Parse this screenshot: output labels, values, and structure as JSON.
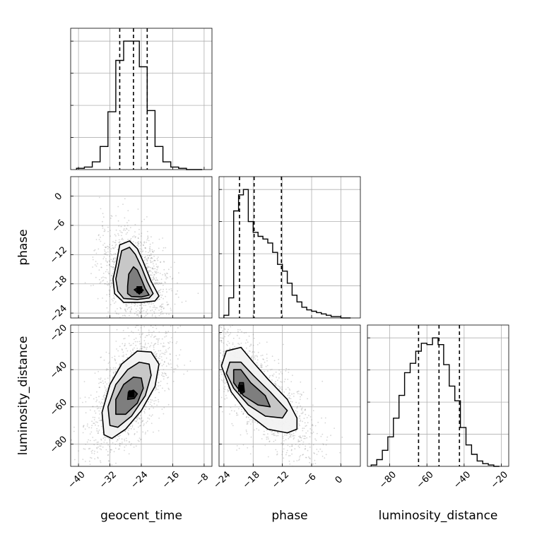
{
  "chart_data": {
    "type": "corner",
    "parameters": [
      "geocent_time",
      "phase",
      "luminosity_distance"
    ],
    "axes": {
      "geocent_time": {
        "lim": [
          -42,
          -6
        ],
        "ticks": [
          -40,
          -32,
          -24,
          -16,
          -8
        ]
      },
      "phase": {
        "lim": [
          -25,
          4
        ],
        "ticks": [
          -24,
          -18,
          -12,
          -6,
          0
        ]
      },
      "luminosity_distance": {
        "lim": [
          -92,
          -16
        ],
        "ticks": [
          -80,
          -60,
          -40,
          -20
        ]
      }
    },
    "diagonal": [
      {
        "parameter": "geocent_time",
        "quantiles": [
          -29.5,
          -26.0,
          -22.5
        ],
        "bin_edges": [
          -40.5,
          -38.5,
          -36.5,
          -34.5,
          -32.5,
          -30.5,
          -28.5,
          -26.5,
          -24.5,
          -22.5,
          -20.5,
          -18.5,
          -16.5,
          -14.5,
          -12.5,
          -10.5,
          -8.5
        ],
        "counts": [
          1,
          2,
          6,
          18,
          45,
          85,
          100,
          100,
          80,
          46,
          18,
          6,
          2,
          1,
          0,
          0
        ]
      },
      {
        "parameter": "phase",
        "quantiles": [
          -20.8,
          -17.8,
          -12.2
        ],
        "bin_edges": [
          -24,
          -23,
          -22,
          -21,
          -20,
          -19,
          -18,
          -17,
          -16,
          -15,
          -14,
          -13,
          -12,
          -11,
          -10,
          -9,
          -8,
          -7,
          -6,
          -5,
          -4,
          -3,
          -2,
          -1,
          0,
          1,
          2
        ],
        "counts": [
          2,
          15,
          80,
          92,
          96,
          72,
          64,
          61,
          59,
          56,
          49,
          40,
          35,
          26,
          17,
          12,
          8,
          6,
          5,
          4,
          3,
          2,
          1,
          1,
          0,
          0
        ]
      },
      {
        "parameter": "luminosity_distance",
        "quantiles": [
          -64.5,
          -53.5,
          -42.5
        ],
        "bin_edges": [
          -90,
          -87,
          -84,
          -81,
          -78,
          -75,
          -72,
          -69,
          -66,
          -63,
          -60,
          -57,
          -54,
          -51,
          -48,
          -45,
          -42,
          -39,
          -36,
          -33,
          -30,
          -27,
          -24,
          -21
        ],
        "counts": [
          1,
          5,
          12,
          22,
          36,
          53,
          70,
          77,
          86,
          92,
          91,
          96,
          91,
          76,
          60,
          49,
          29,
          16,
          9,
          4,
          2,
          1,
          0
        ]
      }
    ],
    "contours": [
      {
        "x": "geocent_time",
        "y": "phase",
        "peak": [
          -24.5,
          -19.2
        ],
        "levels": [
          [
            [
              -30.5,
              -14.5
            ],
            [
              -29.5,
              -10
            ],
            [
              -27,
              -9.2
            ],
            [
              -25,
              -10.8
            ],
            [
              -23.5,
              -13.5
            ],
            [
              -21.5,
              -17.5
            ],
            [
              -19.5,
              -20.5
            ],
            [
              -20.5,
              -21.5
            ],
            [
              -24,
              -21.8
            ],
            [
              -28.5,
              -21.8
            ],
            [
              -30.8,
              -20
            ],
            [
              -31.2,
              -17
            ]
          ],
          [
            [
              -30,
              -15
            ],
            [
              -29,
              -11.2
            ],
            [
              -27,
              -10.5
            ],
            [
              -25.5,
              -12
            ],
            [
              -24,
              -14.5
            ],
            [
              -22.5,
              -17.5
            ],
            [
              -21,
              -20
            ],
            [
              -22,
              -20.9
            ],
            [
              -25,
              -21.2
            ],
            [
              -28.5,
              -21
            ],
            [
              -30,
              -19.5
            ],
            [
              -30.5,
              -17
            ]
          ],
          [
            [
              -27.5,
              -18.5
            ],
            [
              -27.2,
              -16
            ],
            [
              -26,
              -14.5
            ],
            [
              -25,
              -15.2
            ],
            [
              -24,
              -17
            ],
            [
              -23,
              -19
            ],
            [
              -22,
              -20.3
            ],
            [
              -24,
              -20.7
            ],
            [
              -26.5,
              -20.6
            ],
            [
              -27.5,
              -20
            ]
          ],
          [
            [
              -25.8,
              -19.2
            ],
            [
              -24.5,
              -18.6
            ],
            [
              -23.5,
              -19.3
            ],
            [
              -24.5,
              -20.1
            ]
          ]
        ]
      },
      {
        "x": "geocent_time",
        "y": "luminosity_distance",
        "peak": [
          -26.5,
          -53
        ],
        "levels": [
          [
            [
              -33.5,
              -75
            ],
            [
              -34,
              -63
            ],
            [
              -32,
              -48
            ],
            [
              -29,
              -37
            ],
            [
              -25,
              -30
            ],
            [
              -21.5,
              -30.5
            ],
            [
              -19.5,
              -37
            ],
            [
              -20.5,
              -49
            ],
            [
              -24,
              -62
            ],
            [
              -28,
              -72
            ],
            [
              -31.5,
              -77
            ]
          ],
          [
            [
              -32,
              -70
            ],
            [
              -32.5,
              -60
            ],
            [
              -30.5,
              -48
            ],
            [
              -27.5,
              -40
            ],
            [
              -24.5,
              -36
            ],
            [
              -22,
              -37
            ],
            [
              -21.5,
              -43
            ],
            [
              -23,
              -54
            ],
            [
              -26.5,
              -65
            ],
            [
              -30,
              -71
            ]
          ],
          [
            [
              -30.5,
              -64
            ],
            [
              -30.5,
              -56
            ],
            [
              -28.5,
              -48
            ],
            [
              -26,
              -44
            ],
            [
              -24,
              -44.5
            ],
            [
              -23.5,
              -50
            ],
            [
              -25,
              -58
            ],
            [
              -28,
              -64
            ]
          ],
          [
            [
              -27.5,
              -56
            ],
            [
              -27.3,
              -52
            ],
            [
              -26,
              -51
            ],
            [
              -25,
              -53
            ],
            [
              -25.8,
              -55.5
            ]
          ]
        ]
      },
      {
        "x": "phase",
        "y": "luminosity_distance",
        "peak": [
          -20.5,
          -50
        ],
        "levels": [
          [
            [
              -23.5,
              -30
            ],
            [
              -20.5,
              -28
            ],
            [
              -18,
              -36
            ],
            [
              -15,
              -45
            ],
            [
              -11,
              -56
            ],
            [
              -9,
              -66
            ],
            [
              -9,
              -72
            ],
            [
              -11,
              -74
            ],
            [
              -15,
              -72
            ],
            [
              -19,
              -64
            ],
            [
              -22.5,
              -52
            ],
            [
              -24.5,
              -38
            ]
          ],
          [
            [
              -22.8,
              -36
            ],
            [
              -20.5,
              -36
            ],
            [
              -18,
              -43
            ],
            [
              -14.5,
              -52
            ],
            [
              -11,
              -62
            ],
            [
              -12,
              -66
            ],
            [
              -15.5,
              -65
            ],
            [
              -19,
              -59
            ],
            [
              -22,
              -50
            ],
            [
              -23.5,
              -42
            ]
          ],
          [
            [
              -22,
              -40
            ],
            [
              -20.5,
              -40
            ],
            [
              -18.5,
              -47
            ],
            [
              -15.5,
              -54
            ],
            [
              -14.5,
              -60
            ],
            [
              -17,
              -59
            ],
            [
              -20,
              -54
            ],
            [
              -22,
              -47
            ]
          ],
          [
            [
              -20.8,
              -47
            ],
            [
              -20,
              -47
            ],
            [
              -19.8,
              -52
            ],
            [
              -20.5,
              -53
            ],
            [
              -21,
              -50
            ]
          ]
        ]
      }
    ]
  }
}
